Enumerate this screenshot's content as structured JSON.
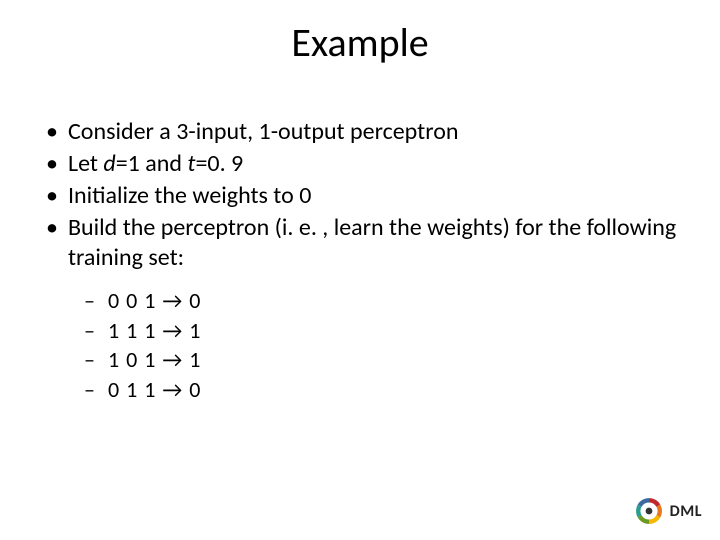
{
  "title": "Example",
  "bullets": [
    {
      "html": "Consider a 3-input, 1-output perceptron"
    },
    {
      "html": "Let <span class=\"italic\">d</span>=1 and <span class=\"italic\">t</span>=0. 9"
    },
    {
      "html": "Initialize the weights to 0"
    },
    {
      "html": "Build the perceptron (i. e. , learn the weights) for the following training set:"
    }
  ],
  "training_set": [
    "0 0 1 → 0",
    "1 1 1 → 1",
    "1 0 1 → 1",
    "0 1 1 → 0"
  ],
  "logo": {
    "text": "DML",
    "colors": {
      "red": "#c1272d",
      "orange": "#e87722",
      "yellow": "#f5b700",
      "green": "#6a9a1f",
      "teal": "#2a9d8f",
      "blue": "#3b6aa0",
      "dark": "#333333"
    }
  }
}
